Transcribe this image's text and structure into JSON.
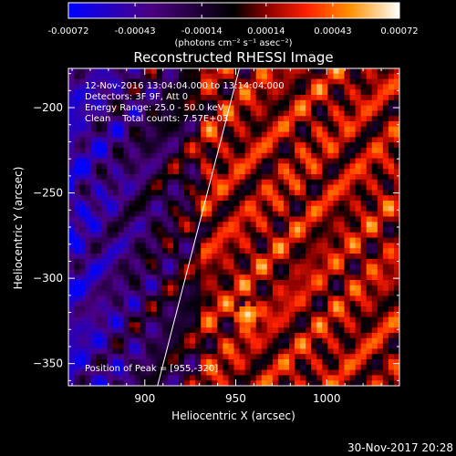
{
  "colorbar": {
    "tick_labels": [
      "-0.00072",
      "-0.00043",
      "-0.00014",
      "0.00014",
      "0.00043",
      "0.00072"
    ],
    "tick_values": [
      -0.00072,
      -0.00043,
      -0.00014,
      0.00014,
      0.00043,
      0.00072
    ],
    "range": [
      -0.00072,
      0.00072
    ],
    "units_label": "(photons cm⁻² s⁻¹ asec⁻²)"
  },
  "chart_data": {
    "type": "heatmap",
    "title": "Reconstructed RHESSI Image",
    "xlabel": "Heliocentric X (arcsec)",
    "ylabel": "Heliocentric Y (arcsec)",
    "xlim": [
      858,
      1040
    ],
    "ylim": [
      -363,
      -177
    ],
    "x_ticks": [
      900,
      950,
      1000
    ],
    "y_ticks": [
      -200,
      -250,
      -300,
      -350
    ],
    "colormap": [
      "#0000ff",
      "#4b0082",
      "#000000",
      "#8b0000",
      "#ff0000",
      "#ff8c00",
      "#ffff00",
      "#ffffff"
    ],
    "annotations": [
      "12-Nov-2016 13:04:04.000 to 13:14:04.000",
      "Detectors: 3F 9F, Att 0",
      "Energy Range: 25.0 - 50.0 keV",
      "Clean    Total counts: 7.57E+03"
    ],
    "peak_label": "Position of Peak = [955,-320]",
    "peak_position": [
      955,
      -320
    ],
    "limb_line": [
      [
        907,
        -363
      ],
      [
        952,
        -177
      ]
    ]
  },
  "footer": {
    "timestamp": "30-Nov-2017 20:28"
  }
}
